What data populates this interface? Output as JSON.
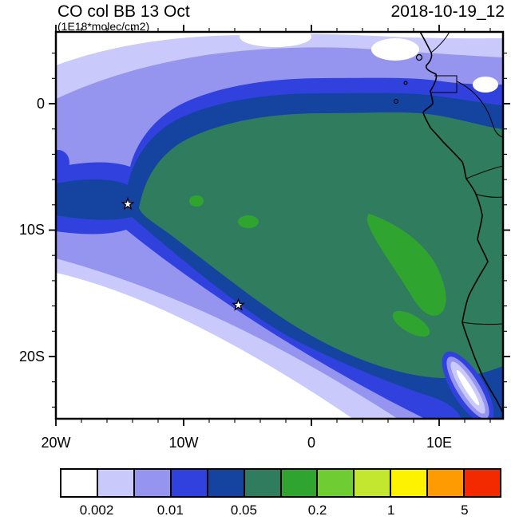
{
  "header": {
    "title": "CO col BB 13 Oct",
    "subtitle": "(1E18*molec/cm2)",
    "timestamp": "2018-10-19_12"
  },
  "palette": [
    "#ffffff",
    "#c9c9fb",
    "#9595ef",
    "#3141de",
    "#1443a0",
    "#2f7d5e",
    "#2fa52f",
    "#70cc33",
    "#c3e62e",
    "#fdf200",
    "#fe9a02",
    "#f32a00"
  ],
  "axes": {
    "x_ticks": [
      {
        "label": "20W",
        "lon": -20
      },
      {
        "label": "10W",
        "lon": -10
      },
      {
        "label": "0",
        "lon": 0
      },
      {
        "label": "10E",
        "lon": 10
      }
    ],
    "y_ticks": [
      {
        "label": "0",
        "lat": 0
      },
      {
        "label": "10S",
        "lat": -10
      },
      {
        "label": "20S",
        "lat": -20
      }
    ],
    "minor_tick_step_deg": 2
  },
  "colorbar": {
    "tick_labels": [
      {
        "text": "0.002",
        "boundary": 1
      },
      {
        "text": "0.01",
        "boundary": 3
      },
      {
        "text": "0.05",
        "boundary": 5
      },
      {
        "text": "0.2",
        "boundary": 7
      },
      {
        "text": "1",
        "boundary": 9
      },
      {
        "text": "5",
        "boundary": 11
      }
    ]
  },
  "chart_data": {
    "type": "heatmap",
    "subtype": "filled-contour-map",
    "title": "CO col BB 13 Oct",
    "units": "1E18*molec/cm2",
    "valid_time": "2018-10-19_12",
    "x_ticks": [
      "20W",
      "10W",
      "0",
      "10E"
    ],
    "y_ticks": [
      "0",
      "10S",
      "20S"
    ],
    "lon_range_deg": [
      -20,
      15
    ],
    "lat_range_deg": [
      -25,
      5.7
    ],
    "colorbar_labels": [
      "0.002",
      "0.01",
      "0.05",
      "0.2",
      "1",
      "5"
    ],
    "n_colorbar_cells": 12,
    "palette": [
      "#ffffff",
      "#c9c9fb",
      "#9595ef",
      "#3141de",
      "#1443a0",
      "#2f7d5e",
      "#2fa52f",
      "#70cc33",
      "#c3e62e",
      "#fdf200",
      "#fe9a02",
      "#f32a00"
    ],
    "markers": [
      {
        "symbol": "star",
        "lon": -14.4,
        "lat": -8.0
      },
      {
        "symbol": "star",
        "lon": -5.7,
        "lat": -16.0
      }
    ],
    "field_summary": [
      "broad plateau in the 0.05 band (dark sea-green) covering the SE Atlantic off Angola/Congo and adjacent African land",
      "patches one contour level higher (bright green) along the Angolan coast plus two small offshore spots",
      "values decrease outward through 0.02 / 0.01 / 0.005 / 0.002 bands toward the southwest and north",
      "below lowest contour (white) in the far southwest corner and along parts of the top edge",
      "narrow coastal minimum strip (white/lavender core) along the Angola-Namibia coast in the SE corner"
    ]
  }
}
